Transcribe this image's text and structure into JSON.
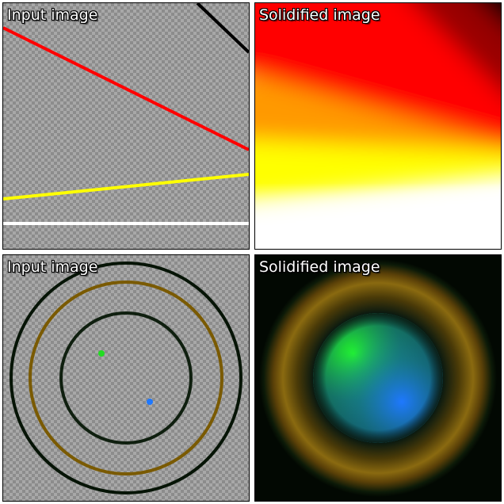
{
  "panels": {
    "top_left": {
      "label": "Input image"
    },
    "top_right": {
      "label": "Solidified image"
    },
    "bottom_left": {
      "label": "Input image"
    },
    "bottom_right": {
      "label": "Solidified image"
    }
  },
  "colors": {
    "line_red": "#ff0000",
    "line_yellow": "#ffff00",
    "line_white": "#ffffff",
    "line_black": "#000000",
    "ring_dark_green": "#0a1e0a",
    "ring_olive": "#806000",
    "dot_green": "#22dd22",
    "dot_blue": "#1e78ff"
  }
}
